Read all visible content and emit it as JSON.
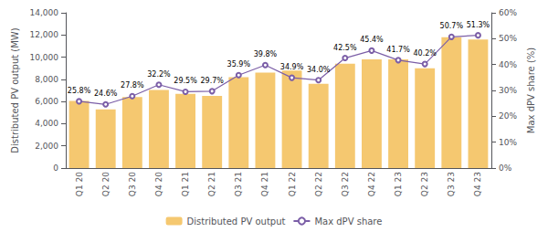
{
  "chart_data": {
    "type": "bar",
    "categories": [
      "Q1 20",
      "Q2 20",
      "Q3 20",
      "Q4 20",
      "Q1 21",
      "Q2 21",
      "Q3 21",
      "Q4 21",
      "Q1 22",
      "Q2 22",
      "Q3 22",
      "Q4 22",
      "Q1 23",
      "Q2 23",
      "Q3 23",
      "Q4 23"
    ],
    "series": [
      {
        "name": "Distributed PV output",
        "type": "bar",
        "color": "#F5C870",
        "values": [
          6050,
          5300,
          6400,
          7050,
          6700,
          6500,
          8200,
          8600,
          8800,
          7600,
          9400,
          9800,
          9800,
          9000,
          11800,
          11600
        ]
      },
      {
        "name": "Max dPV share",
        "type": "line",
        "axis": "y2",
        "color": "#7B5EA7",
        "marker": "circle",
        "data_labels": true,
        "values": [
          25.8,
          24.6,
          27.8,
          32.2,
          29.5,
          29.7,
          35.9,
          39.8,
          34.9,
          34.0,
          42.5,
          45.4,
          41.7,
          40.2,
          50.7,
          51.3
        ],
        "value_labels": [
          "25.8%",
          "24.6%",
          "27.8%",
          "32.2%",
          "29.5%",
          "29.7%",
          "35.9%",
          "39.8%",
          "34.9%",
          "34.0%",
          "42.5%",
          "45.4%",
          "41.7%",
          "40.2%",
          "50.7%",
          "51.3%"
        ]
      }
    ],
    "ylabel": "Distributed PV output (MW)",
    "y2label": "Max dPV share (%)",
    "ylim": [
      0,
      14000
    ],
    "yticks": [
      0,
      {
        "value": 2000,
        "label": "2,000"
      },
      {
        "value": 4000,
        "label": "4,000"
      },
      {
        "value": 6000,
        "label": "6,000"
      },
      {
        "value": 8000,
        "label": "8,000"
      },
      {
        "value": 10000,
        "label": "10,000"
      },
      {
        "value": 12000,
        "label": "12,000"
      },
      {
        "value": 14000,
        "label": "14,000"
      }
    ],
    "y2lim": [
      0,
      60
    ],
    "y2ticks": [
      {
        "value": 0,
        "label": "0%"
      },
      {
        "value": 10,
        "label": "10%"
      },
      {
        "value": 20,
        "label": "20%"
      },
      {
        "value": 30,
        "label": "30%"
      },
      {
        "value": 40,
        "label": "40%"
      },
      {
        "value": 50,
        "label": "50%"
      },
      {
        "value": 60,
        "label": "60%"
      }
    ],
    "grid": false,
    "legend": "bottom"
  }
}
